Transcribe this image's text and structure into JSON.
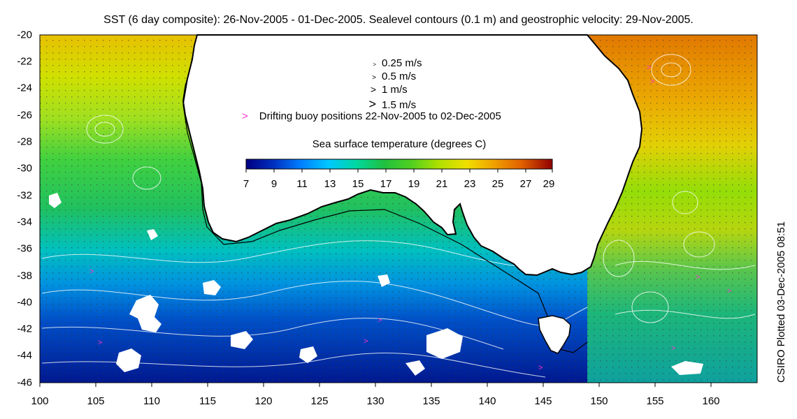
{
  "title": "SST (6 day composite): 26-Nov-2005 - 01-Dec-2005. Sealevel contours (0.1 m) and geostrophic velocity: 29-Nov-2005.",
  "credit": "CSIRO Plotted 03-Dec-2005 08:51",
  "y_axis_ticks": [
    "-20",
    "-22",
    "-24",
    "-26",
    "-28",
    "-30",
    "-32",
    "-34",
    "-36",
    "-38",
    "-40",
    "-42",
    "-44",
    "-46"
  ],
  "x_axis_ticks": [
    "100",
    "105",
    "110",
    "115",
    "120",
    "125",
    "130",
    "135",
    "140",
    "145",
    "150",
    "155",
    "160"
  ],
  "velocity_legend": [
    {
      "label": "0.25 m/s",
      "speed": 0.25
    },
    {
      "label": "0.5 m/s",
      "speed": 0.5
    },
    {
      "label": "1 m/s",
      "speed": 1.0
    },
    {
      "label": "1.5 m/s",
      "speed": 1.5
    }
  ],
  "buoy_legend": {
    "marker": ">",
    "label": "Drifting buoy positions 22-Nov-2005 to 02-Dec-2005",
    "color": "#ff33cc"
  },
  "colorbar": {
    "title": "Sea surface temperature (degrees C)",
    "tick_labels": [
      "7",
      "9",
      "11",
      "13",
      "15",
      "17",
      "19",
      "21",
      "23",
      "25",
      "27",
      "29"
    ],
    "range": [
      7,
      29
    ],
    "colors": [
      "#000080",
      "#0030c0",
      "#0080ff",
      "#00c8ff",
      "#00d8a0",
      "#20c040",
      "#50d020",
      "#b0e000",
      "#f0e000",
      "#f0a000",
      "#e06000",
      "#c02000",
      "#900000"
    ]
  }
}
